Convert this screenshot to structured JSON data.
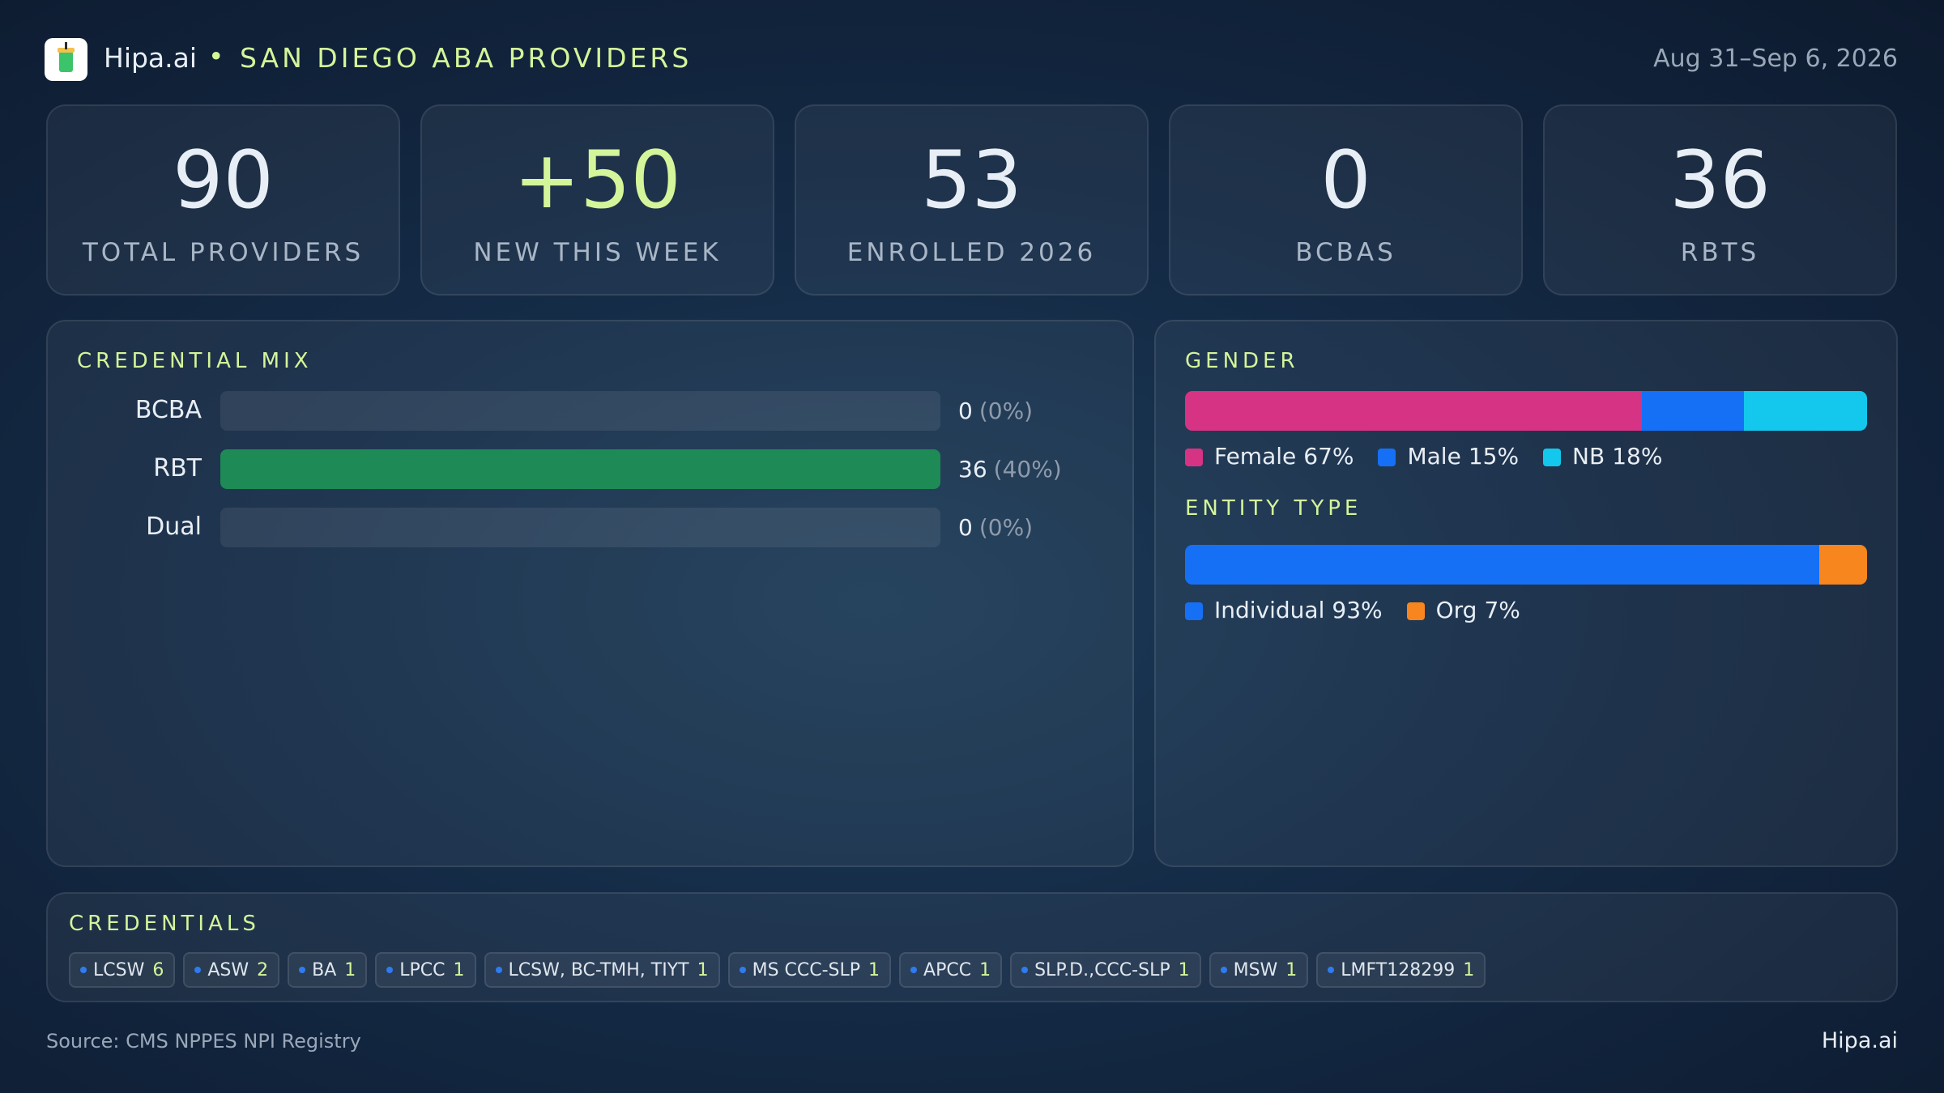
{
  "header": {
    "brand": "Hipa.ai",
    "title": "SAN DIEGO ABA PROVIDERS",
    "date": "Aug 31–Sep 6, 2026"
  },
  "kpis": [
    {
      "value": "90",
      "label": "TOTAL PROVIDERS"
    },
    {
      "value": "+50",
      "label": "NEW THIS WEEK",
      "highlight": true
    },
    {
      "value": "53",
      "label": "ENROLLED 2026"
    },
    {
      "value": "0",
      "label": "BCBAS"
    },
    {
      "value": "36",
      "label": "RBTS"
    }
  ],
  "credential_mix": {
    "title": "CREDENTIAL MIX",
    "color": "#1e8a55",
    "rows": [
      {
        "label": "BCBA",
        "value": 0,
        "share": "(0%)"
      },
      {
        "label": "RBT",
        "value": 36,
        "share": "(40%)"
      },
      {
        "label": "Dual",
        "value": 0,
        "share": "(0%)"
      }
    ]
  },
  "gender": {
    "title": "GENDER",
    "segments": [
      {
        "name": "Female",
        "value": 67,
        "value_label": "67%",
        "color": "#d63384"
      },
      {
        "name": "Male",
        "value": 15,
        "value_label": "15%",
        "color": "#1670f5"
      },
      {
        "name": "NB",
        "value": 18,
        "value_label": "18%",
        "color": "#13c8ec"
      }
    ]
  },
  "entity_type": {
    "title": "ENTITY TYPE",
    "segments": [
      {
        "name": "Individual",
        "value": 93,
        "value_label": "93%",
        "color": "#1670f5"
      },
      {
        "name": "Org",
        "value": 7,
        "value_label": "7%",
        "color": "#f7861e"
      }
    ]
  },
  "credentials": {
    "title": "CREDENTIALS",
    "items": [
      {
        "name": "LCSW",
        "count": 6
      },
      {
        "name": "ASW",
        "count": 2
      },
      {
        "name": "BA",
        "count": 1
      },
      {
        "name": "LPCC",
        "count": 1
      },
      {
        "name": "LCSW, BC-TMH, TIYT",
        "count": 1
      },
      {
        "name": "MS CCC-SLP",
        "count": 1
      },
      {
        "name": "APCC",
        "count": 1
      },
      {
        "name": "SLP.D.,CCC-SLP",
        "count": 1
      },
      {
        "name": "MSW",
        "count": 1
      },
      {
        "name": "LMFT128299",
        "count": 1
      }
    ]
  },
  "footer": {
    "source": "Source: CMS NPPES NPI Registry",
    "brand": "Hipa.ai"
  }
}
